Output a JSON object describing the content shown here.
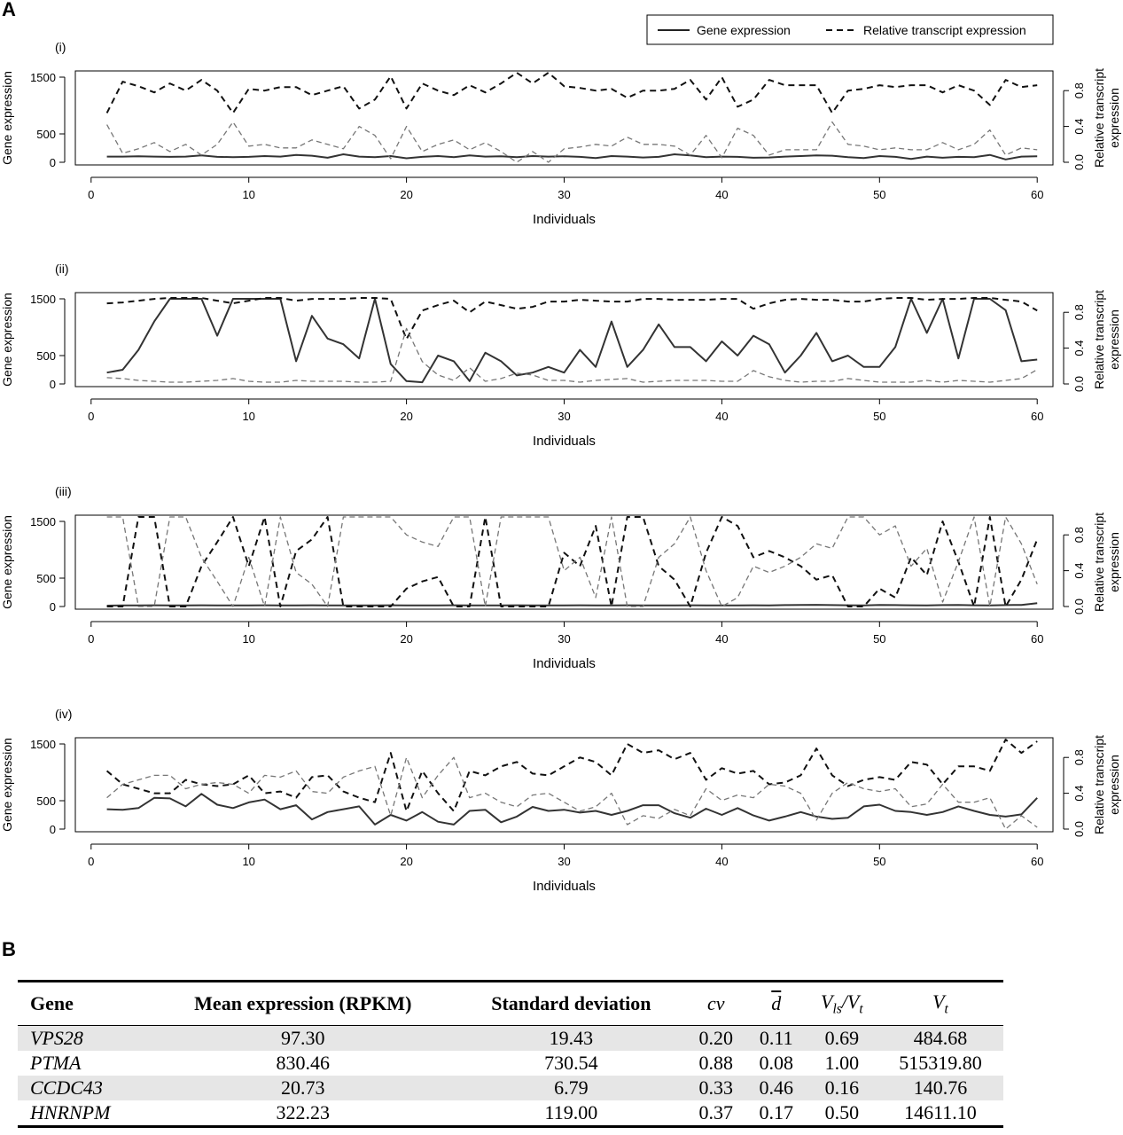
{
  "panel_a_letter": "A",
  "panel_b_letter": "B",
  "legend": {
    "solid_label": "Gene expression",
    "dashed_label": "Relative transcript expression"
  },
  "chart_data": [
    {
      "type": "line",
      "panel": "(i)",
      "xlabel": "Individuals",
      "ylabel_left": "Gene expression",
      "ylabel_right": "Relative transcript expression",
      "xlim": [
        1,
        60
      ],
      "ylim_left": [
        0,
        1500
      ],
      "ylim_right": [
        0,
        1
      ],
      "xticks": [
        0,
        10,
        20,
        30,
        40,
        50,
        60
      ],
      "yticks_left": [
        0,
        500,
        1500
      ],
      "yticks_right": [
        "0.0",
        "0.4",
        "0.8"
      ],
      "series": [
        {
          "name": "Gene expression",
          "axis": "left",
          "style": "solid",
          "color": "#333333",
          "values": [
            100,
            100,
            105,
            100,
            95,
            100,
            120,
            95,
            90,
            95,
            110,
            100,
            130,
            115,
            80,
            140,
            100,
            90,
            110,
            70,
            95,
            110,
            90,
            120,
            100,
            105,
            90,
            110,
            100,
            105,
            95,
            75,
            110,
            100,
            85,
            95,
            140,
            120,
            90,
            100,
            95,
            80,
            85,
            100,
            110,
            120,
            115,
            90,
            75,
            110,
            95,
            60,
            100,
            80,
            95,
            90,
            130,
            50,
            100,
            105
          ]
        },
        {
          "name": "Relative transcript expression",
          "axis": "right",
          "style": "dashed",
          "color": "#111111",
          "values": [
            0.55,
            0.9,
            0.85,
            0.78,
            0.88,
            0.8,
            0.92,
            0.8,
            0.55,
            0.82,
            0.8,
            0.84,
            0.84,
            0.75,
            0.8,
            0.85,
            0.6,
            0.7,
            0.96,
            0.6,
            0.88,
            0.8,
            0.75,
            0.86,
            0.78,
            0.88,
            1.0,
            0.88,
            1.0,
            0.85,
            0.83,
            0.8,
            0.82,
            0.72,
            0.8,
            0.8,
            0.82,
            0.92,
            0.7,
            0.95,
            0.62,
            0.7,
            0.92,
            0.86,
            0.86,
            0.86,
            0.55,
            0.8,
            0.82,
            0.86,
            0.84,
            0.86,
            0.86,
            0.78,
            0.86,
            0.8,
            0.64,
            0.92,
            0.84,
            0.86
          ]
        },
        {
          "name": "Relative transcript expression",
          "axis": "right",
          "style": "dashed",
          "color": "#777777",
          "values": [
            0.42,
            0.1,
            0.15,
            0.22,
            0.12,
            0.2,
            0.08,
            0.2,
            0.45,
            0.18,
            0.2,
            0.16,
            0.16,
            0.25,
            0.2,
            0.15,
            0.4,
            0.3,
            0.04,
            0.4,
            0.12,
            0.2,
            0.25,
            0.14,
            0.22,
            0.12,
            0.0,
            0.12,
            0.0,
            0.15,
            0.17,
            0.2,
            0.18,
            0.28,
            0.2,
            0.2,
            0.18,
            0.08,
            0.3,
            0.05,
            0.38,
            0.3,
            0.08,
            0.14,
            0.14,
            0.14,
            0.45,
            0.2,
            0.18,
            0.14,
            0.16,
            0.14,
            0.14,
            0.22,
            0.14,
            0.2,
            0.36,
            0.08,
            0.16,
            0.14
          ]
        }
      ]
    },
    {
      "type": "line",
      "panel": "(ii)",
      "xlabel": "Individuals",
      "ylabel_left": "Gene expression",
      "ylabel_right": "Relative transcript expression",
      "xlim": [
        1,
        60
      ],
      "ylim_left": [
        0,
        1500
      ],
      "ylim_right": [
        0,
        1
      ],
      "xticks": [
        0,
        10,
        20,
        30,
        40,
        50,
        60
      ],
      "yticks_left": [
        0,
        500,
        1500
      ],
      "yticks_right": [
        "0.0",
        "0.4",
        "0.8"
      ],
      "series": [
        {
          "name": "Gene expression",
          "axis": "left",
          "style": "solid",
          "color": "#333333",
          "values": [
            200,
            250,
            600,
            1100,
            1500,
            1500,
            1500,
            850,
            1500,
            1500,
            1500,
            1500,
            400,
            1200,
            800,
            700,
            450,
            1500,
            350,
            50,
            30,
            500,
            400,
            50,
            550,
            400,
            150,
            200,
            300,
            200,
            600,
            300,
            1100,
            300,
            600,
            1050,
            650,
            650,
            400,
            750,
            500,
            850,
            700,
            200,
            500,
            900,
            400,
            500,
            300,
            300,
            650,
            1500,
            900,
            1500,
            450,
            1500,
            1500,
            1300,
            400,
            430
          ]
        },
        {
          "name": "Relative transcript expression",
          "axis": "right",
          "style": "dashed",
          "color": "#111111",
          "values": [
            0.9,
            0.91,
            0.93,
            0.95,
            0.96,
            0.96,
            0.96,
            0.93,
            0.9,
            0.93,
            0.96,
            0.96,
            0.93,
            0.95,
            0.95,
            0.95,
            0.96,
            0.96,
            0.95,
            0.5,
            0.82,
            0.88,
            0.93,
            0.8,
            0.92,
            0.88,
            0.84,
            0.86,
            0.92,
            0.92,
            0.94,
            0.93,
            0.92,
            0.92,
            0.95,
            0.95,
            0.94,
            0.94,
            0.94,
            0.95,
            0.95,
            0.84,
            0.9,
            0.94,
            0.95,
            0.94,
            0.94,
            0.92,
            0.92,
            0.95,
            0.96,
            0.96,
            0.94,
            0.95,
            0.95,
            0.96,
            0.96,
            0.94,
            0.92,
            0.82
          ]
        },
        {
          "name": "Relative transcript expression",
          "axis": "right",
          "style": "dashed",
          "color": "#777777",
          "values": [
            0.07,
            0.06,
            0.04,
            0.03,
            0.02,
            0.02,
            0.03,
            0.04,
            0.06,
            0.03,
            0.02,
            0.02,
            0.04,
            0.03,
            0.03,
            0.03,
            0.02,
            0.02,
            0.03,
            0.62,
            0.25,
            0.1,
            0.04,
            0.18,
            0.03,
            0.06,
            0.12,
            0.1,
            0.04,
            0.04,
            0.02,
            0.04,
            0.05,
            0.06,
            0.02,
            0.03,
            0.04,
            0.04,
            0.04,
            0.03,
            0.03,
            0.15,
            0.08,
            0.04,
            0.02,
            0.03,
            0.03,
            0.06,
            0.04,
            0.02,
            0.02,
            0.02,
            0.04,
            0.02,
            0.04,
            0.03,
            0.02,
            0.04,
            0.06,
            0.16
          ]
        }
      ]
    },
    {
      "type": "line",
      "panel": "(iii)",
      "xlabel": "Individuals",
      "ylabel_left": "Gene expression",
      "ylabel_right": "Relative transcript expression",
      "xlim": [
        1,
        60
      ],
      "ylim_left": [
        0,
        1500
      ],
      "ylim_right": [
        0,
        1
      ],
      "xticks": [
        0,
        10,
        20,
        30,
        40,
        50,
        60
      ],
      "yticks_left": [
        0,
        500,
        1500
      ],
      "yticks_right": [
        "0.0",
        "0.4",
        "0.8"
      ],
      "series": [
        {
          "name": "Gene expression",
          "axis": "left",
          "style": "solid",
          "color": "#333333",
          "values": [
            15,
            18,
            20,
            22,
            18,
            20,
            22,
            20,
            18,
            20,
            22,
            18,
            20,
            22,
            18,
            20,
            18,
            20,
            22,
            20,
            18,
            20,
            22,
            20,
            18,
            20,
            22,
            20,
            18,
            20,
            22,
            18,
            20,
            22,
            20,
            18,
            20,
            22,
            20,
            18,
            20,
            22,
            20,
            25,
            28,
            30,
            25,
            22,
            20,
            28,
            25,
            22,
            20,
            25,
            28,
            22,
            20,
            25,
            28,
            60
          ]
        },
        {
          "name": "Relative transcript expression",
          "axis": "right",
          "style": "dashed",
          "color": "#111111",
          "values": [
            0.0,
            0.0,
            1.0,
            1.0,
            0.0,
            0.0,
            0.45,
            0.72,
            1.0,
            0.45,
            1.0,
            0.0,
            0.62,
            0.75,
            1.0,
            0.0,
            0.0,
            0.0,
            0.0,
            0.2,
            0.28,
            0.33,
            0.0,
            0.0,
            1.0,
            0.0,
            0.0,
            0.0,
            0.0,
            0.6,
            0.45,
            0.9,
            0.0,
            1.0,
            1.0,
            0.45,
            0.3,
            0.0,
            0.6,
            1.0,
            0.9,
            0.55,
            0.62,
            0.55,
            0.45,
            0.3,
            0.35,
            0.0,
            0.0,
            0.2,
            0.1,
            0.55,
            0.35,
            0.95,
            0.5,
            0.0,
            1.0,
            0.0,
            0.3,
            0.75
          ]
        },
        {
          "name": "Relative transcript expression",
          "axis": "right",
          "style": "dashed",
          "color": "#777777",
          "values": [
            1.0,
            1.0,
            0.0,
            0.0,
            1.0,
            1.0,
            0.55,
            0.28,
            0.0,
            0.55,
            0.0,
            1.0,
            0.38,
            0.25,
            0.0,
            1.0,
            1.0,
            1.0,
            1.0,
            0.8,
            0.72,
            0.67,
            1.0,
            1.0,
            0.0,
            1.0,
            1.0,
            1.0,
            1.0,
            0.4,
            0.55,
            0.1,
            1.0,
            0.0,
            0.0,
            0.55,
            0.7,
            1.0,
            0.4,
            0.0,
            0.1,
            0.45,
            0.38,
            0.45,
            0.55,
            0.7,
            0.65,
            1.0,
            1.0,
            0.8,
            0.9,
            0.45,
            0.65,
            0.05,
            0.5,
            1.0,
            0.0,
            1.0,
            0.7,
            0.25
          ]
        }
      ]
    },
    {
      "type": "line",
      "panel": "(iv)",
      "xlabel": "Individuals",
      "ylabel_left": "Gene expression",
      "ylabel_right": "Relative transcript expression",
      "xlim": [
        1,
        60
      ],
      "ylim_left": [
        0,
        1500
      ],
      "ylim_right": [
        0,
        1
      ],
      "xticks": [
        0,
        10,
        20,
        30,
        40,
        50,
        60
      ],
      "yticks_left": [
        0,
        500,
        1500
      ],
      "yticks_right": [
        "0.0",
        "0.4",
        "0.8"
      ],
      "series": [
        {
          "name": "Gene expression",
          "axis": "left",
          "style": "solid",
          "color": "#333333",
          "values": [
            350,
            340,
            370,
            550,
            540,
            400,
            620,
            430,
            370,
            470,
            520,
            350,
            420,
            170,
            300,
            350,
            400,
            80,
            250,
            150,
            300,
            130,
            80,
            320,
            340,
            120,
            220,
            390,
            320,
            340,
            290,
            320,
            250,
            320,
            420,
            420,
            280,
            200,
            360,
            250,
            370,
            240,
            150,
            220,
            300,
            220,
            180,
            200,
            400,
            430,
            320,
            300,
            250,
            300,
            400,
            320,
            250,
            220,
            260,
            550
          ]
        },
        {
          "name": "Relative transcript expression",
          "axis": "right",
          "style": "dashed",
          "color": "#111111",
          "values": [
            0.65,
            0.5,
            0.45,
            0.4,
            0.4,
            0.55,
            0.5,
            0.48,
            0.5,
            0.6,
            0.4,
            0.42,
            0.35,
            0.58,
            0.6,
            0.42,
            0.35,
            0.3,
            0.85,
            0.2,
            0.65,
            0.4,
            0.2,
            0.65,
            0.6,
            0.7,
            0.75,
            0.62,
            0.6,
            0.7,
            0.8,
            0.75,
            0.6,
            0.95,
            0.85,
            0.88,
            0.78,
            0.85,
            0.55,
            0.68,
            0.62,
            0.65,
            0.5,
            0.52,
            0.6,
            0.9,
            0.6,
            0.48,
            0.55,
            0.58,
            0.55,
            0.75,
            0.72,
            0.5,
            0.7,
            0.7,
            0.65,
            1.0,
            0.85,
            0.98
          ]
        },
        {
          "name": "Relative transcript expression",
          "axis": "right",
          "style": "dashed",
          "color": "#777777",
          "values": [
            0.35,
            0.5,
            0.55,
            0.6,
            0.6,
            0.45,
            0.5,
            0.52,
            0.5,
            0.4,
            0.6,
            0.58,
            0.65,
            0.42,
            0.4,
            0.58,
            0.65,
            0.7,
            0.15,
            0.8,
            0.35,
            0.6,
            0.8,
            0.35,
            0.4,
            0.3,
            0.25,
            0.38,
            0.4,
            0.3,
            0.2,
            0.25,
            0.4,
            0.05,
            0.15,
            0.12,
            0.22,
            0.15,
            0.45,
            0.32,
            0.38,
            0.35,
            0.5,
            0.48,
            0.4,
            0.1,
            0.4,
            0.52,
            0.45,
            0.42,
            0.45,
            0.25,
            0.28,
            0.5,
            0.3,
            0.3,
            0.35,
            0.0,
            0.15,
            0.02
          ]
        }
      ]
    }
  ],
  "table": {
    "headers": {
      "gene": "Gene",
      "mean": "Mean expression (RPKM)",
      "sd": "Standard deviation",
      "cv": "cv",
      "d": "d",
      "vls_num": "V",
      "vls_num_sub": "ls",
      "vls_den": "V",
      "vls_den_sub": "t",
      "vt": "V",
      "vt_sub": "t"
    },
    "rows": [
      {
        "gene": "VPS28",
        "mean": "97.30",
        "sd": "19.43",
        "cv": "0.20",
        "d": "0.11",
        "vls": "0.69",
        "vt": "484.68"
      },
      {
        "gene": "PTMA",
        "mean": "830.46",
        "sd": "730.54",
        "cv": "0.88",
        "d": "0.08",
        "vls": "1.00",
        "vt": "515319.80"
      },
      {
        "gene": "CCDC43",
        "mean": "20.73",
        "sd": "6.79",
        "cv": "0.33",
        "d": "0.46",
        "vls": "0.16",
        "vt": "140.76"
      },
      {
        "gene": "HNRNPM",
        "mean": "322.23",
        "sd": "119.00",
        "cv": "0.37",
        "d": "0.17",
        "vls": "0.50",
        "vt": "14611.10"
      }
    ]
  }
}
